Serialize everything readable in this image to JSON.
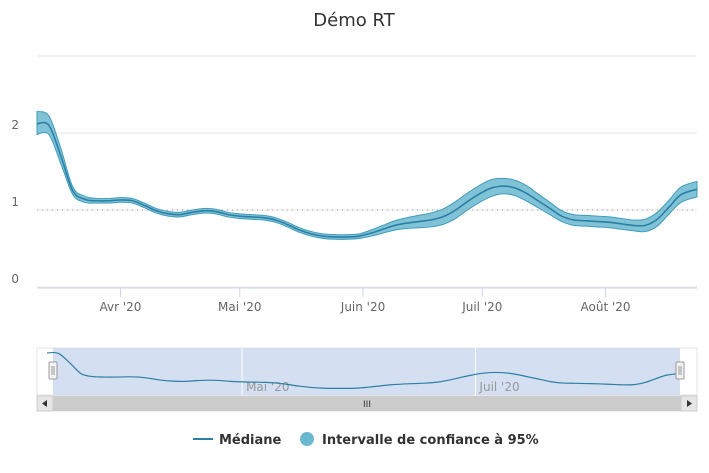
{
  "chart_data": {
    "type": "area",
    "title": "Démo RT",
    "xlabel": "",
    "ylabel": "",
    "y_ticks": [
      0,
      1,
      2
    ],
    "x_tick_labels": [
      "Avr '20",
      "Mai '20",
      "Juin '20",
      "Juil '20",
      "Août '20"
    ],
    "x_tick_dates": [
      "2020-04-01",
      "2020-05-01",
      "2020-06-01",
      "2020-07-01",
      "2020-08-01"
    ],
    "x_range": [
      "2020-03-11",
      "2020-08-24"
    ],
    "ylim": [
      0,
      3
    ],
    "reference_line": 1,
    "navigator_labels": [
      "Mai '20",
      "Juil '20"
    ],
    "series": [
      {
        "name": "Médiane",
        "dates": [
          "2020-03-11",
          "2020-03-14",
          "2020-03-17",
          "2020-03-20",
          "2020-03-23",
          "2020-03-26",
          "2020-03-29",
          "2020-04-01",
          "2020-04-04",
          "2020-04-07",
          "2020-04-10",
          "2020-04-13",
          "2020-04-16",
          "2020-04-19",
          "2020-04-22",
          "2020-04-25",
          "2020-04-28",
          "2020-05-01",
          "2020-05-04",
          "2020-05-07",
          "2020-05-10",
          "2020-05-13",
          "2020-05-16",
          "2020-05-19",
          "2020-05-22",
          "2020-05-25",
          "2020-05-28",
          "2020-05-31",
          "2020-06-03",
          "2020-06-06",
          "2020-06-09",
          "2020-06-12",
          "2020-06-15",
          "2020-06-18",
          "2020-06-21",
          "2020-06-24",
          "2020-06-27",
          "2020-06-30",
          "2020-07-03",
          "2020-07-06",
          "2020-07-09",
          "2020-07-12",
          "2020-07-15",
          "2020-07-18",
          "2020-07-21",
          "2020-07-24",
          "2020-07-27",
          "2020-07-30",
          "2020-08-02",
          "2020-08-05",
          "2020-08-08",
          "2020-08-11",
          "2020-08-14",
          "2020-08-17",
          "2020-08-20",
          "2020-08-24"
        ],
        "values": [
          2.12,
          2.1,
          1.7,
          1.25,
          1.14,
          1.12,
          1.12,
          1.13,
          1.12,
          1.06,
          0.99,
          0.95,
          0.94,
          0.97,
          0.99,
          0.98,
          0.94,
          0.92,
          0.91,
          0.9,
          0.87,
          0.81,
          0.74,
          0.69,
          0.66,
          0.65,
          0.65,
          0.66,
          0.7,
          0.75,
          0.8,
          0.83,
          0.85,
          0.87,
          0.91,
          0.99,
          1.1,
          1.2,
          1.28,
          1.31,
          1.29,
          1.22,
          1.12,
          1.02,
          0.92,
          0.87,
          0.86,
          0.85,
          0.84,
          0.82,
          0.8,
          0.8,
          0.88,
          1.04,
          1.2,
          1.27
        ]
      },
      {
        "name": "Intervalle de confiance à 95%",
        "lower": [
          1.98,
          1.98,
          1.6,
          1.2,
          1.1,
          1.09,
          1.09,
          1.1,
          1.09,
          1.03,
          0.96,
          0.92,
          0.91,
          0.94,
          0.96,
          0.95,
          0.91,
          0.89,
          0.88,
          0.87,
          0.84,
          0.78,
          0.71,
          0.66,
          0.63,
          0.62,
          0.62,
          0.63,
          0.66,
          0.7,
          0.74,
          0.76,
          0.77,
          0.78,
          0.81,
          0.88,
          0.99,
          1.09,
          1.17,
          1.21,
          1.19,
          1.12,
          1.03,
          0.94,
          0.85,
          0.8,
          0.79,
          0.78,
          0.77,
          0.75,
          0.73,
          0.72,
          0.79,
          0.95,
          1.1,
          1.17
        ],
        "upper": [
          2.28,
          2.22,
          1.8,
          1.3,
          1.18,
          1.15,
          1.15,
          1.16,
          1.15,
          1.09,
          1.02,
          0.98,
          0.97,
          1.0,
          1.02,
          1.01,
          0.97,
          0.95,
          0.94,
          0.93,
          0.9,
          0.84,
          0.77,
          0.72,
          0.69,
          0.68,
          0.68,
          0.69,
          0.74,
          0.8,
          0.86,
          0.9,
          0.93,
          0.96,
          1.01,
          1.1,
          1.21,
          1.31,
          1.39,
          1.41,
          1.39,
          1.32,
          1.21,
          1.1,
          0.99,
          0.94,
          0.93,
          0.92,
          0.91,
          0.89,
          0.87,
          0.88,
          0.97,
          1.13,
          1.3,
          1.37
        ]
      }
    ],
    "colors": {
      "median": "#2b7fa5",
      "band": "#6ab8d0",
      "band_stroke": "#3f9cbc",
      "reference": "#999999",
      "navigator_fill": "#ccd9ee"
    },
    "grid": true,
    "legend_position": "bottom"
  },
  "icons": {
    "scroll_left": "◀",
    "scroll_right": "▶",
    "scroll_grip": "III",
    "handle": "||"
  }
}
